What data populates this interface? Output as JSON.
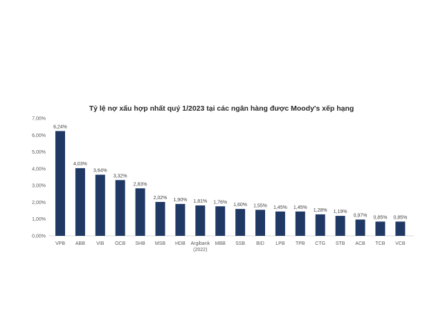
{
  "chart_data": {
    "type": "bar",
    "title": "Tỷ lệ nợ xấu hợp nhất quý 1/2023 tại các ngân hàng được Moody's xếp hạng",
    "xlabel": "",
    "ylabel": "",
    "categories": [
      "VPB",
      "ABB",
      "VIB",
      "OCB",
      "SHB",
      "MSB",
      "HDB",
      "Argibank (2022)",
      "MBB",
      "SSB",
      "BID",
      "LPB",
      "TPB",
      "CTG",
      "STB",
      "ACB",
      "TCB",
      "VCB"
    ],
    "values": [
      6.24,
      4.03,
      3.64,
      3.32,
      2.83,
      2.02,
      1.9,
      1.81,
      1.76,
      1.6,
      1.55,
      1.45,
      1.45,
      1.28,
      1.19,
      0.97,
      0.85,
      0.85
    ],
    "data_labels": [
      "6,24%",
      "4,03%",
      "3,64%",
      "3,32%",
      "2,83%",
      "2,02%",
      "1,90%",
      "1,81%",
      "1,76%",
      "1,60%",
      "1,55%",
      "1,45%",
      "1,45%",
      "1,28%",
      "1,19%",
      "0,97%",
      "0,85%",
      "0,85%"
    ],
    "yticks": [
      "0,00%",
      "1,00%",
      "2,00%",
      "3,00%",
      "4,00%",
      "5,00%",
      "6,00%",
      "7,00%"
    ],
    "ylim": [
      0,
      7
    ],
    "grid": false,
    "legend": "none",
    "bar_color": "#1f3864"
  }
}
